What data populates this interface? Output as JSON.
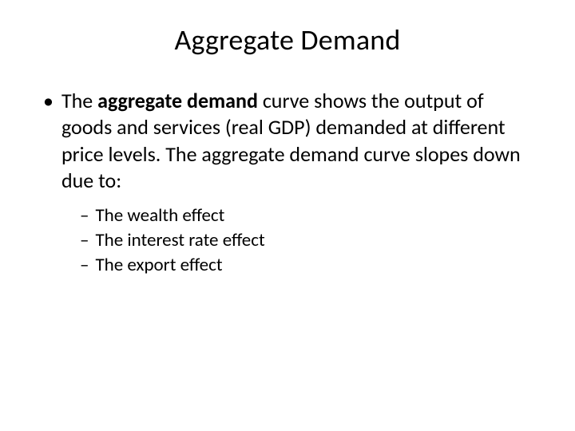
{
  "title": "Aggregate Demand",
  "main_bullet": {
    "marker": "•",
    "pre": "The ",
    "bold": "aggregate demand",
    "post": " curve shows the output of goods and services (real GDP) demanded at different price levels.  The aggregate demand curve slopes down due to:"
  },
  "sub_bullets": {
    "dash": "–",
    "items": [
      "The wealth effect",
      "The interest rate effect",
      "The export effect"
    ]
  },
  "colors": {
    "background": "#ffffff",
    "text": "#000000"
  },
  "fonts": {
    "title_size": 36,
    "body_size": 26,
    "sub_size": 23,
    "family": "Calibri"
  }
}
